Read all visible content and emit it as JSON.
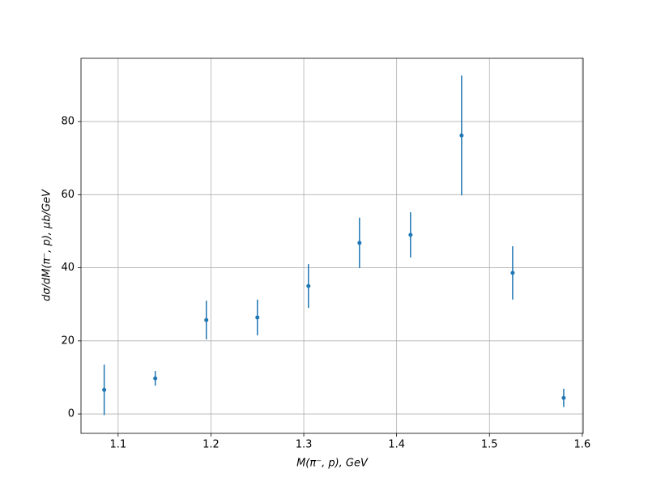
{
  "chart_data": {
    "type": "errorbar",
    "xlabel": "M(π⁻, p), GeV",
    "ylabel": "dσ/dM(π⁻, p), μb/GeV",
    "x": [
      1.085,
      1.14,
      1.195,
      1.25,
      1.305,
      1.36,
      1.415,
      1.47,
      1.525,
      1.58
    ],
    "values": [
      6.6,
      9.75,
      25.7,
      26.4,
      35.0,
      46.8,
      49.0,
      76.2,
      38.6,
      4.4
    ],
    "errors": [
      6.9,
      2.0,
      5.3,
      4.9,
      6.0,
      6.9,
      6.2,
      16.4,
      7.3,
      2.5
    ],
    "color": "#1f77b4",
    "xlim": [
      1.06,
      1.601
    ],
    "ylim": [
      -5.3,
      97.3
    ],
    "xticks": [
      1.1,
      1.2,
      1.3,
      1.4,
      1.5,
      1.6
    ],
    "yticks": [
      0,
      20,
      40,
      60,
      80
    ],
    "grid": true
  }
}
